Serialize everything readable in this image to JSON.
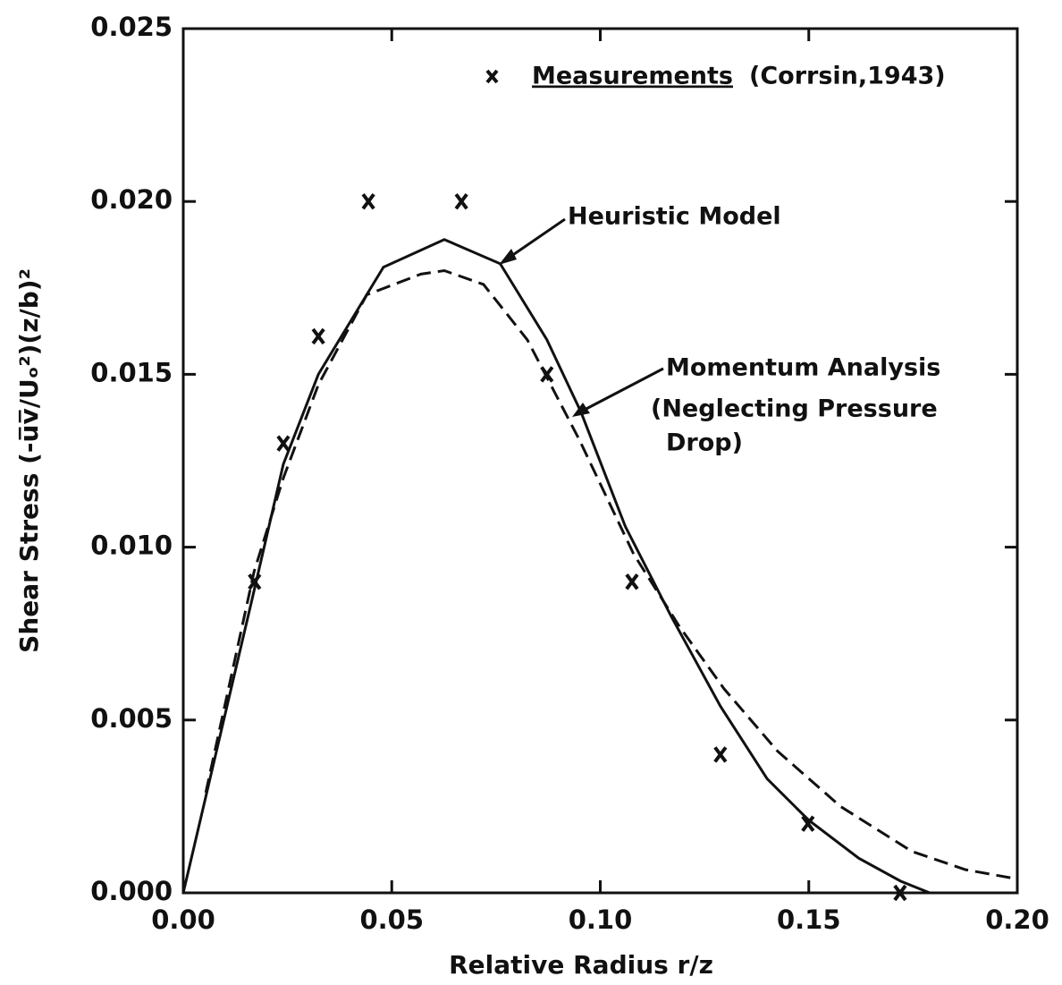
{
  "chart_data": {
    "type": "line",
    "xlabel": "Relative Radius r/z",
    "ylabel": "Shear Stress (-u̅v̅/Uₒ²)(z/b)²",
    "xlim": [
      0,
      0.2
    ],
    "ylim": [
      0,
      0.025
    ],
    "xticks": [
      {
        "value": 0,
        "label": "0.00"
      },
      {
        "value": 0.05,
        "label": "0.05"
      },
      {
        "value": 0.1,
        "label": "0.10"
      },
      {
        "value": 0.15,
        "label": "0.15"
      },
      {
        "value": 0.2,
        "label": "0.20"
      }
    ],
    "yticks": [
      {
        "value": 0,
        "label": "0.000"
      },
      {
        "value": 0.005,
        "label": "0.005"
      },
      {
        "value": 0.01,
        "label": "0.010"
      },
      {
        "value": 0.015,
        "label": "0.015"
      },
      {
        "value": 0.02,
        "label": "0.020"
      },
      {
        "value": 0.025,
        "label": "0.025"
      }
    ],
    "series": [
      {
        "name": "Measurements",
        "type": "scatter",
        "color": "#111",
        "x": [
          0.0171,
          0.024,
          0.0324,
          0.0444,
          0.0667,
          0.0872,
          0.1076,
          0.1288,
          0.1498,
          0.1719
        ],
        "values": [
          0.009,
          0.013,
          0.0161,
          0.02,
          0.02,
          0.015,
          0.009,
          0.004,
          0.002,
          0.0
        ]
      },
      {
        "name": "Heuristic Model",
        "type": "line",
        "style": "solid",
        "color": "#111",
        "x": [
          0,
          0.017,
          0.024,
          0.0324,
          0.048,
          0.0626,
          0.076,
          0.0872,
          0.0954,
          0.106,
          0.117,
          0.1288,
          0.14,
          0.15,
          0.162,
          0.172,
          0.179
        ],
        "values": [
          0,
          0.00875,
          0.0124,
          0.015,
          0.0181,
          0.0189,
          0.0182,
          0.016,
          0.0139,
          0.0106,
          0.008,
          0.0054,
          0.0033,
          0.0021,
          0.001,
          0.00034,
          0
        ]
      },
      {
        "name": "Momentum Analysis",
        "type": "line",
        "style": "dashed",
        "color": "#111",
        "x": [
          0.0054,
          0.017,
          0.024,
          0.0324,
          0.044,
          0.057,
          0.0626,
          0.072,
          0.0825,
          0.095,
          0.108,
          0.119,
          0.1297,
          0.1425,
          0.1576,
          0.1747,
          0.1876,
          0.2
        ],
        "values": [
          0.0029,
          0.0093,
          0.012,
          0.0147,
          0.0173,
          0.0179,
          0.018,
          0.0176,
          0.016,
          0.0131,
          0.0098,
          0.0077,
          0.0059,
          0.0041,
          0.0025,
          0.0012,
          0.00067,
          0.0004
        ]
      }
    ],
    "annotations": [
      "(Corrsin,1943)",
      "(Neglecting Pressure",
      "Drop)"
    ]
  }
}
